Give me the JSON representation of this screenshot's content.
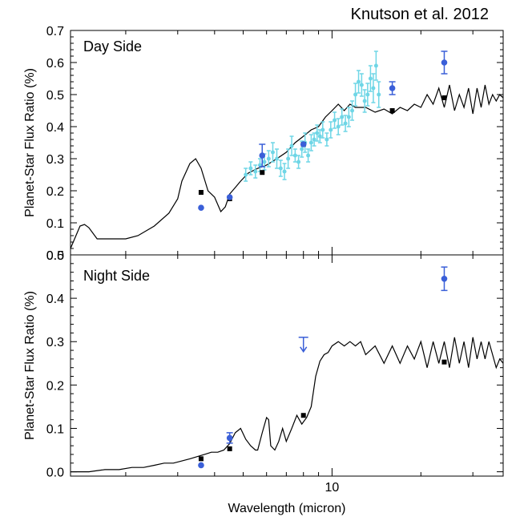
{
  "credit": "Knutson et al. 2012",
  "chart_data": [
    {
      "type": "line",
      "panel_label": "Day Side",
      "ylabel": "Planet-Star Flux Ratio (%)",
      "xlabel": "",
      "x_scale": "log",
      "xlim": [
        1.3,
        38
      ],
      "ylim": [
        0.0,
        0.7
      ],
      "y_ticks": [
        "0.0",
        "0.1",
        "0.2",
        "0.3",
        "0.4",
        "0.5",
        "0.6",
        "0.7"
      ],
      "x_tick_labels": [],
      "model_spectrum": {
        "color": "#000000",
        "points": [
          [
            1.3,
            0.02
          ],
          [
            1.4,
            0.09
          ],
          [
            1.45,
            0.095
          ],
          [
            1.5,
            0.085
          ],
          [
            1.6,
            0.05
          ],
          [
            1.8,
            0.05
          ],
          [
            2.0,
            0.05
          ],
          [
            2.2,
            0.06
          ],
          [
            2.5,
            0.09
          ],
          [
            2.8,
            0.13
          ],
          [
            3.0,
            0.175
          ],
          [
            3.1,
            0.23
          ],
          [
            3.3,
            0.285
          ],
          [
            3.45,
            0.3
          ],
          [
            3.6,
            0.27
          ],
          [
            3.8,
            0.2
          ],
          [
            4.0,
            0.18
          ],
          [
            4.2,
            0.135
          ],
          [
            4.35,
            0.15
          ],
          [
            4.5,
            0.19
          ],
          [
            4.7,
            0.21
          ],
          [
            4.9,
            0.23
          ],
          [
            5.2,
            0.255
          ],
          [
            5.6,
            0.27
          ],
          [
            6.0,
            0.28
          ],
          [
            6.5,
            0.3
          ],
          [
            7.0,
            0.32
          ],
          [
            7.5,
            0.35
          ],
          [
            8.0,
            0.37
          ],
          [
            8.5,
            0.39
          ],
          [
            9.0,
            0.4
          ],
          [
            9.5,
            0.43
          ],
          [
            10.0,
            0.45
          ],
          [
            10.5,
            0.47
          ],
          [
            11.0,
            0.45
          ],
          [
            11.5,
            0.47
          ],
          [
            12.0,
            0.46
          ],
          [
            13.0,
            0.46
          ],
          [
            14.0,
            0.445
          ],
          [
            15.0,
            0.455
          ],
          [
            16.0,
            0.44
          ],
          [
            17.0,
            0.46
          ],
          [
            18.0,
            0.45
          ],
          [
            19.0,
            0.47
          ],
          [
            20.0,
            0.46
          ],
          [
            21.0,
            0.5
          ],
          [
            22.0,
            0.47
          ],
          [
            23.0,
            0.52
          ],
          [
            24.0,
            0.46
          ],
          [
            25.0,
            0.53
          ],
          [
            26.0,
            0.45
          ],
          [
            27.0,
            0.5
          ],
          [
            28.0,
            0.46
          ],
          [
            29.0,
            0.52
          ],
          [
            30.0,
            0.44
          ],
          [
            31.0,
            0.52
          ],
          [
            32.0,
            0.46
          ],
          [
            33.0,
            0.53
          ],
          [
            34.0,
            0.47
          ],
          [
            35.0,
            0.5
          ],
          [
            36.0,
            0.48
          ],
          [
            37.0,
            0.5
          ],
          [
            38.0,
            0.49
          ]
        ]
      },
      "model_band_points": {
        "color": "#000000",
        "points": [
          [
            3.6,
            0.195
          ],
          [
            4.5,
            0.175
          ],
          [
            5.8,
            0.257
          ],
          [
            8.0,
            0.345
          ],
          [
            16.0,
            0.45
          ],
          [
            24.0,
            0.49
          ]
        ]
      },
      "observed_points": {
        "color": "#3a5fd8",
        "points": [
          [
            3.6,
            0.147,
            0.0
          ],
          [
            4.5,
            0.18,
            0.0
          ],
          [
            5.8,
            0.31,
            0.035
          ],
          [
            8.0,
            0.345,
            0.0
          ],
          [
            16.0,
            0.52,
            0.02
          ],
          [
            24.0,
            0.6,
            0.035
          ]
        ]
      },
      "irs_spectrum": {
        "color": "#6fd6e6",
        "points": [
          [
            5.1,
            0.25,
            0.02
          ],
          [
            5.3,
            0.27,
            0.02
          ],
          [
            5.5,
            0.26,
            0.02
          ],
          [
            5.7,
            0.28,
            0.02
          ],
          [
            5.9,
            0.29,
            0.025
          ],
          [
            6.1,
            0.3,
            0.025
          ],
          [
            6.3,
            0.32,
            0.03
          ],
          [
            6.5,
            0.3,
            0.03
          ],
          [
            6.7,
            0.27,
            0.025
          ],
          [
            6.9,
            0.26,
            0.025
          ],
          [
            7.1,
            0.3,
            0.03
          ],
          [
            7.3,
            0.34,
            0.03
          ],
          [
            7.5,
            0.31,
            0.02
          ],
          [
            7.7,
            0.29,
            0.02
          ],
          [
            7.9,
            0.33,
            0.025
          ],
          [
            8.1,
            0.35,
            0.03
          ],
          [
            8.3,
            0.31,
            0.02
          ],
          [
            8.5,
            0.35,
            0.025
          ],
          [
            8.7,
            0.36,
            0.02
          ],
          [
            8.9,
            0.38,
            0.025
          ],
          [
            9.1,
            0.37,
            0.02
          ],
          [
            9.3,
            0.39,
            0.025
          ],
          [
            9.6,
            0.36,
            0.02
          ],
          [
            9.9,
            0.39,
            0.025
          ],
          [
            10.2,
            0.42,
            0.025
          ],
          [
            10.5,
            0.4,
            0.025
          ],
          [
            10.8,
            0.43,
            0.025
          ],
          [
            11.1,
            0.41,
            0.025
          ],
          [
            11.4,
            0.43,
            0.03
          ],
          [
            11.7,
            0.45,
            0.03
          ],
          [
            12.0,
            0.5,
            0.035
          ],
          [
            12.3,
            0.54,
            0.035
          ],
          [
            12.6,
            0.53,
            0.035
          ],
          [
            12.9,
            0.48,
            0.035
          ],
          [
            13.2,
            0.5,
            0.035
          ],
          [
            13.5,
            0.55,
            0.04
          ],
          [
            13.8,
            0.52,
            0.045
          ],
          [
            14.1,
            0.59,
            0.045
          ],
          [
            14.4,
            0.5,
            0.04
          ]
        ]
      }
    },
    {
      "type": "line",
      "panel_label": "Night Side",
      "ylabel": "Planet-Star Flux Ratio (%)",
      "xlabel": "Wavelength (micron)",
      "x_scale": "log",
      "xlim": [
        1.3,
        38
      ],
      "ylim": [
        -0.01,
        0.5
      ],
      "y_ticks": [
        "0.0",
        "0.1",
        "0.2",
        "0.3",
        "0.4",
        "0.5"
      ],
      "x_tick_labels": [
        "10"
      ],
      "model_spectrum": {
        "color": "#000000",
        "points": [
          [
            1.3,
            0.0
          ],
          [
            1.5,
            0.0
          ],
          [
            1.7,
            0.005
          ],
          [
            1.9,
            0.005
          ],
          [
            2.1,
            0.01
          ],
          [
            2.3,
            0.01
          ],
          [
            2.5,
            0.015
          ],
          [
            2.7,
            0.02
          ],
          [
            2.9,
            0.02
          ],
          [
            3.1,
            0.025
          ],
          [
            3.3,
            0.03
          ],
          [
            3.5,
            0.035
          ],
          [
            3.7,
            0.04
          ],
          [
            3.9,
            0.045
          ],
          [
            4.1,
            0.045
          ],
          [
            4.3,
            0.05
          ],
          [
            4.5,
            0.065
          ],
          [
            4.7,
            0.09
          ],
          [
            4.9,
            0.1
          ],
          [
            5.1,
            0.075
          ],
          [
            5.3,
            0.06
          ],
          [
            5.5,
            0.05
          ],
          [
            5.6,
            0.05
          ],
          [
            5.8,
            0.09
          ],
          [
            6.0,
            0.125
          ],
          [
            6.1,
            0.12
          ],
          [
            6.2,
            0.06
          ],
          [
            6.4,
            0.05
          ],
          [
            6.6,
            0.07
          ],
          [
            6.8,
            0.1
          ],
          [
            7.0,
            0.07
          ],
          [
            7.3,
            0.1
          ],
          [
            7.6,
            0.13
          ],
          [
            7.9,
            0.11
          ],
          [
            8.2,
            0.125
          ],
          [
            8.5,
            0.15
          ],
          [
            8.8,
            0.22
          ],
          [
            9.1,
            0.255
          ],
          [
            9.4,
            0.27
          ],
          [
            9.7,
            0.275
          ],
          [
            10.0,
            0.29
          ],
          [
            10.5,
            0.3
          ],
          [
            11.0,
            0.29
          ],
          [
            11.5,
            0.3
          ],
          [
            12.0,
            0.29
          ],
          [
            12.5,
            0.3
          ],
          [
            13.0,
            0.27
          ],
          [
            14.0,
            0.29
          ],
          [
            15.0,
            0.25
          ],
          [
            16.0,
            0.29
          ],
          [
            17.0,
            0.25
          ],
          [
            18.0,
            0.29
          ],
          [
            19.0,
            0.26
          ],
          [
            20.0,
            0.3
          ],
          [
            21.0,
            0.24
          ],
          [
            22.0,
            0.3
          ],
          [
            23.0,
            0.25
          ],
          [
            24.0,
            0.3
          ],
          [
            25.0,
            0.24
          ],
          [
            26.0,
            0.31
          ],
          [
            27.0,
            0.25
          ],
          [
            28.0,
            0.3
          ],
          [
            29.0,
            0.24
          ],
          [
            30.0,
            0.31
          ],
          [
            31.0,
            0.26
          ],
          [
            32.0,
            0.3
          ],
          [
            33.0,
            0.26
          ],
          [
            34.0,
            0.3
          ],
          [
            35.0,
            0.27
          ],
          [
            36.0,
            0.24
          ],
          [
            37.0,
            0.26
          ],
          [
            38.0,
            0.25
          ]
        ]
      },
      "model_band_points": {
        "color": "#000000",
        "points": [
          [
            3.6,
            0.03
          ],
          [
            4.5,
            0.053
          ],
          [
            8.0,
            0.13
          ],
          [
            24.0,
            0.253
          ]
        ]
      },
      "observed_points": {
        "color": "#3a5fd8",
        "points": [
          [
            3.6,
            0.015,
            0.0
          ],
          [
            4.5,
            0.078,
            0.012
          ],
          [
            24.0,
            0.445,
            0.027
          ]
        ]
      },
      "upper_limit": {
        "color": "#3a5fd8",
        "x": 8.0,
        "y": 0.31
      }
    }
  ]
}
